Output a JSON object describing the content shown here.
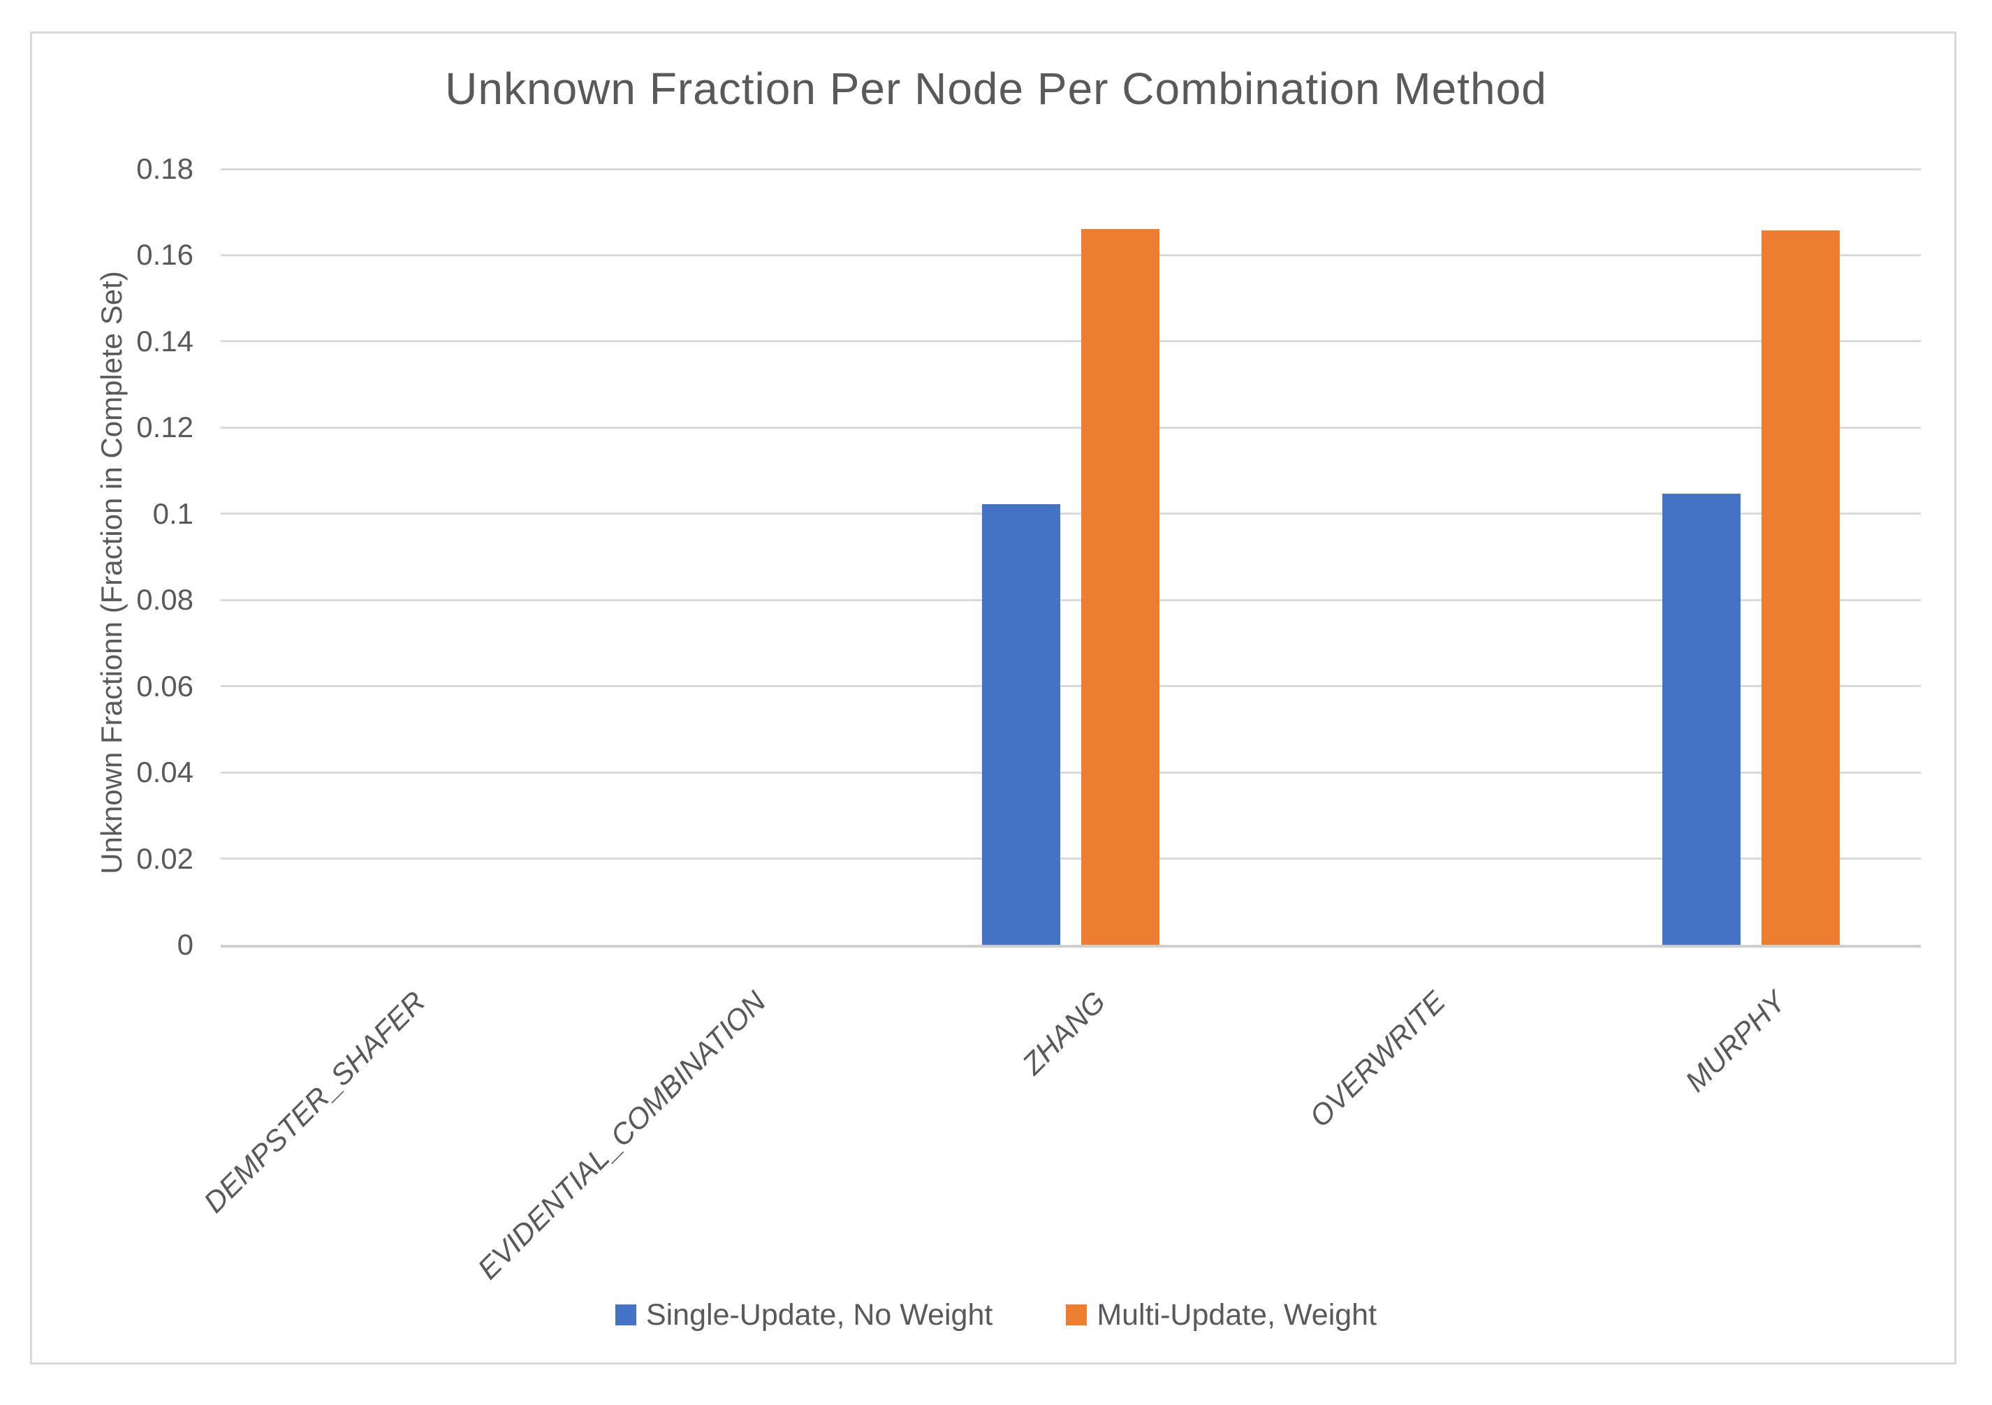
{
  "chart_data": {
    "type": "bar",
    "title": "Unknown Fraction Per Node Per Combination Method",
    "xlabel": "",
    "ylabel": "Unknown Fractionn (Fraction in Complete Set)",
    "categories": [
      "DEMPSTER_SHAFER",
      "EVIDENTIAL_COMBINATION",
      "ZHANG",
      "OVERWRITE",
      "MURPHY"
    ],
    "series": [
      {
        "name": "Single-Update, No Weight",
        "color": "#4472C4",
        "values": [
          0,
          0,
          0.1023,
          0,
          0.1047
        ]
      },
      {
        "name": "Multi-Update, Weight",
        "color": "#ED7D31",
        "values": [
          0,
          0,
          0.1661,
          0,
          0.1657
        ]
      }
    ],
    "ylim": [
      0,
      0.18
    ],
    "yticks": [
      0,
      0.02,
      0.04,
      0.06,
      0.08,
      0.1,
      0.12,
      0.14,
      0.16,
      0.18
    ],
    "grid": true,
    "legend_position": "bottom"
  },
  "colors": {
    "text": "#595959",
    "gridline": "#D9D9D9",
    "axis_line": "#CFCFCF",
    "frame_border": "#D9D9D9",
    "background": "#FFFFFF"
  }
}
